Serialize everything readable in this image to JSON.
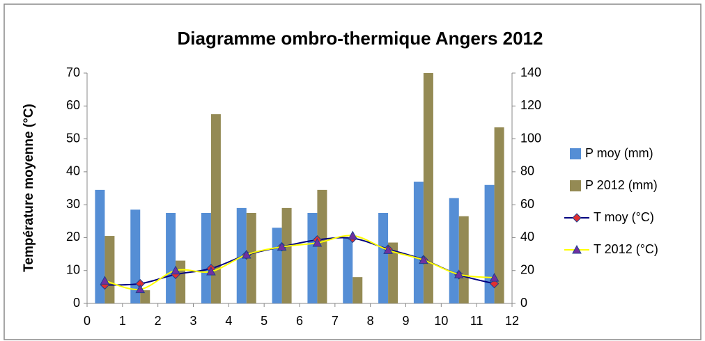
{
  "chart_data": {
    "type": "combo",
    "title": "Diagramme ombro-thermique Angers 2012",
    "y_label": "Température moyenne (°C)",
    "x": [
      0.5,
      1.5,
      2.5,
      3.5,
      4.5,
      5.5,
      6.5,
      7.5,
      8.5,
      9.5,
      10.5,
      11.5
    ],
    "xlim": [
      0,
      12
    ],
    "xticks": [
      0,
      1,
      2,
      3,
      4,
      5,
      6,
      7,
      8,
      9,
      10,
      11,
      12
    ],
    "ylim": [
      0,
      70
    ],
    "yticks": [
      0,
      10,
      20,
      30,
      40,
      50,
      60,
      70
    ],
    "y2lim": [
      0,
      140
    ],
    "y2ticks": [
      0,
      20,
      40,
      60,
      80,
      100,
      120,
      140
    ],
    "grid": false,
    "legend": "right",
    "series": [
      {
        "name": "P moy (mm)",
        "type": "bar",
        "axis": "y2",
        "color": "#558ed5",
        "values": [
          69,
          57,
          55,
          55,
          58,
          46,
          55,
          40,
          55,
          74,
          64,
          72
        ]
      },
      {
        "name": "P 2012 (mm)",
        "type": "bar",
        "axis": "y2",
        "color": "#948a54",
        "values": [
          41,
          8,
          26,
          115,
          55,
          58,
          69,
          16,
          37,
          140,
          53,
          107
        ]
      },
      {
        "name": "T moy (°C)",
        "type": "line",
        "color": "#000080",
        "marker": "diamond",
        "marker_color": "#e03030",
        "values": [
          5.6,
          6.0,
          8.8,
          10.6,
          14.7,
          17.2,
          19.3,
          19.8,
          16.5,
          13.3,
          8.7,
          6.0
        ]
      },
      {
        "name": "T 2012 (°C)",
        "type": "line",
        "color": "#ffff00",
        "marker": "triangle",
        "marker_color": "#7030a0",
        "values": [
          6.9,
          4.3,
          10.0,
          9.7,
          14.8,
          17.2,
          18.4,
          20.6,
          16.2,
          13.2,
          8.8,
          7.8
        ]
      }
    ]
  }
}
